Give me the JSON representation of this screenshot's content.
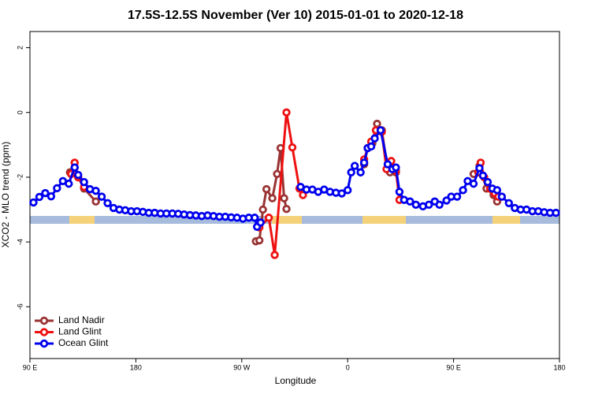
{
  "chart_data": {
    "type": "line",
    "title": "17.5S-12.5S November (Ver 10)   2015-01-01 to 2020-12-18",
    "x_label": "Longitude",
    "y_label": "XCO2 - MLO trend (ppm)",
    "xlim": [
      90,
      540
    ],
    "ylim": [
      -7.6,
      2.5
    ],
    "xticks": [
      {
        "value": 90,
        "label": "90 E"
      },
      {
        "value": 180,
        "label": "180"
      },
      {
        "value": 270,
        "label": "90 W"
      },
      {
        "value": 360,
        "label": "0"
      },
      {
        "value": 450,
        "label": "90 E"
      },
      {
        "value": 540,
        "label": "180"
      }
    ],
    "yticks": [
      -6,
      -4,
      -2,
      0,
      2
    ],
    "legend": "bottom-left",
    "series": [
      {
        "name": "Land Nadir",
        "color": "#993333",
        "x": [
          124,
          128,
          131,
          136,
          146,
          147,
          282,
          285,
          288,
          291,
          296,
          300,
          303,
          306,
          308,
          309,
          374,
          377,
          381,
          385,
          389,
          394,
          396,
          401,
          402,
          467,
          472,
          478,
          484,
          487
        ],
        "values": [
          -1.85,
          -1.7,
          -2.0,
          -2.35,
          -2.75,
          null,
          -3.98,
          -3.95,
          -3.0,
          -2.37,
          -2.65,
          -1.9,
          -1.1,
          -2.65,
          -2.98,
          null,
          -1.6,
          -1.1,
          -0.95,
          -0.35,
          -0.55,
          -1.75,
          -1.85,
          -1.85,
          null,
          -1.9,
          -1.65,
          -2.35,
          -2.55,
          -2.75
        ]
      },
      {
        "name": "Land Glint",
        "color": "#ee1111",
        "x": [
          125,
          128,
          131,
          136,
          137,
          285,
          293,
          298,
          308,
          313,
          319,
          322,
          323,
          374,
          377,
          380,
          384,
          389,
          393,
          397,
          401,
          404,
          405,
          471,
          473,
          476,
          481,
          485,
          488
        ],
        "values": [
          -1.9,
          -1.55,
          -2.0,
          -2.3,
          null,
          -3.55,
          -3.25,
          -4.4,
          0.0,
          -1.08,
          -2.35,
          -2.55,
          null,
          -1.45,
          -1.1,
          -0.9,
          -0.55,
          -0.6,
          -1.75,
          -1.5,
          -1.8,
          -2.7,
          null,
          -1.85,
          -1.55,
          -2.0,
          -2.35,
          -2.5,
          -2.6
        ]
      },
      {
        "name": "Ocean Glint",
        "color": "#0000ee",
        "x": [
          93,
          98,
          103,
          108,
          113,
          118,
          123,
          128,
          131,
          136,
          141,
          146,
          151,
          156,
          161,
          166,
          171,
          176,
          181,
          186,
          191,
          196,
          201,
          206,
          211,
          216,
          221,
          226,
          231,
          236,
          241,
          246,
          251,
          256,
          261,
          266,
          271,
          276,
          281,
          283,
          286,
          300,
          320,
          325,
          330,
          335,
          340,
          345,
          350,
          355,
          360,
          363,
          366,
          371,
          374,
          377,
          380,
          383,
          388,
          394,
          398,
          401,
          404,
          408,
          413,
          418,
          424,
          429,
          434,
          438,
          444,
          448,
          453,
          458,
          462,
          467,
          472,
          475,
          479,
          483,
          487,
          491,
          497,
          502,
          507,
          512,
          517,
          522,
          527,
          532,
          537
        ],
        "values": [
          -2.78,
          -2.61,
          -2.49,
          -2.59,
          -2.34,
          -2.12,
          -2.2,
          -1.7,
          -1.93,
          -2.15,
          -2.37,
          -2.42,
          -2.6,
          -2.8,
          -2.95,
          -3.0,
          -3.02,
          -3.05,
          -3.05,
          -3.07,
          -3.1,
          -3.1,
          -3.12,
          -3.12,
          -3.12,
          -3.13,
          -3.15,
          -3.17,
          -3.18,
          -3.2,
          -3.18,
          -3.2,
          -3.22,
          -3.22,
          -3.24,
          -3.25,
          -3.28,
          -3.25,
          -3.25,
          -3.53,
          -3.4,
          null,
          -2.3,
          -2.38,
          -2.38,
          -2.45,
          -2.38,
          -2.45,
          -2.48,
          -2.5,
          -2.4,
          -1.85,
          -1.65,
          -1.85,
          -1.55,
          -1.1,
          -1.05,
          -0.8,
          -0.55,
          -1.6,
          -1.75,
          -1.7,
          -2.45,
          -2.7,
          -2.75,
          -2.85,
          -2.9,
          -2.85,
          -2.75,
          -2.85,
          -2.72,
          -2.6,
          -2.6,
          -2.4,
          -2.12,
          -2.2,
          -1.72,
          -1.95,
          -2.15,
          -2.35,
          -2.4,
          -2.6,
          -2.8,
          -2.95,
          -3.0,
          -3.0,
          -3.05,
          -3.05,
          -3.08,
          -3.1,
          -3.1
        ]
      }
    ]
  }
}
